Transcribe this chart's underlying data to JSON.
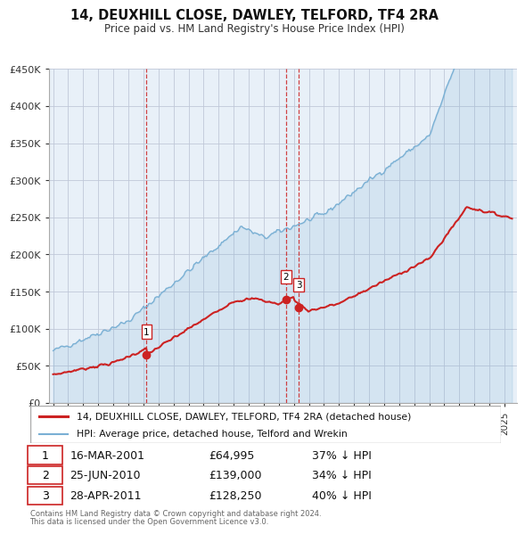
{
  "title": "14, DEUXHILL CLOSE, DAWLEY, TELFORD, TF4 2RA",
  "subtitle": "Price paid vs. HM Land Registry's House Price Index (HPI)",
  "ylim": [
    0,
    450000
  ],
  "yticks": [
    0,
    50000,
    100000,
    150000,
    200000,
    250000,
    300000,
    350000,
    400000,
    450000
  ],
  "ytick_labels": [
    "£0",
    "£50K",
    "£100K",
    "£150K",
    "£200K",
    "£250K",
    "£300K",
    "£350K",
    "£400K",
    "£450K"
  ],
  "vline_dates": [
    2001.21,
    2010.48,
    2011.32
  ],
  "transactions": [
    {
      "date_num": 2001.21,
      "price": 64995,
      "label": "1"
    },
    {
      "date_num": 2010.48,
      "price": 139000,
      "label": "2"
    },
    {
      "date_num": 2011.32,
      "price": 128250,
      "label": "3"
    }
  ],
  "legend_entries": [
    {
      "label": "14, DEUXHILL CLOSE, DAWLEY, TELFORD, TF4 2RA (detached house)",
      "color": "#cc2222",
      "lw": 1.8
    },
    {
      "label": "HPI: Average price, detached house, Telford and Wrekin",
      "color": "#7ab0d4",
      "lw": 1.2
    }
  ],
  "table_rows": [
    {
      "num": "1",
      "date": "16-MAR-2001",
      "price": "£64,995",
      "hpi": "37% ↓ HPI"
    },
    {
      "num": "2",
      "date": "25-JUN-2010",
      "price": "£139,000",
      "hpi": "34% ↓ HPI"
    },
    {
      "num": "3",
      "date": "28-APR-2011",
      "price": "£128,250",
      "hpi": "40% ↓ HPI"
    }
  ],
  "footer": [
    "Contains HM Land Registry data © Crown copyright and database right 2024.",
    "This data is licensed under the Open Government Licence v3.0."
  ],
  "hpi_color": "#7ab0d4",
  "price_color": "#cc2222",
  "vline_color": "#cc2222",
  "bg_color": "#e8f0f8",
  "grid_color": "#c0c8d8"
}
